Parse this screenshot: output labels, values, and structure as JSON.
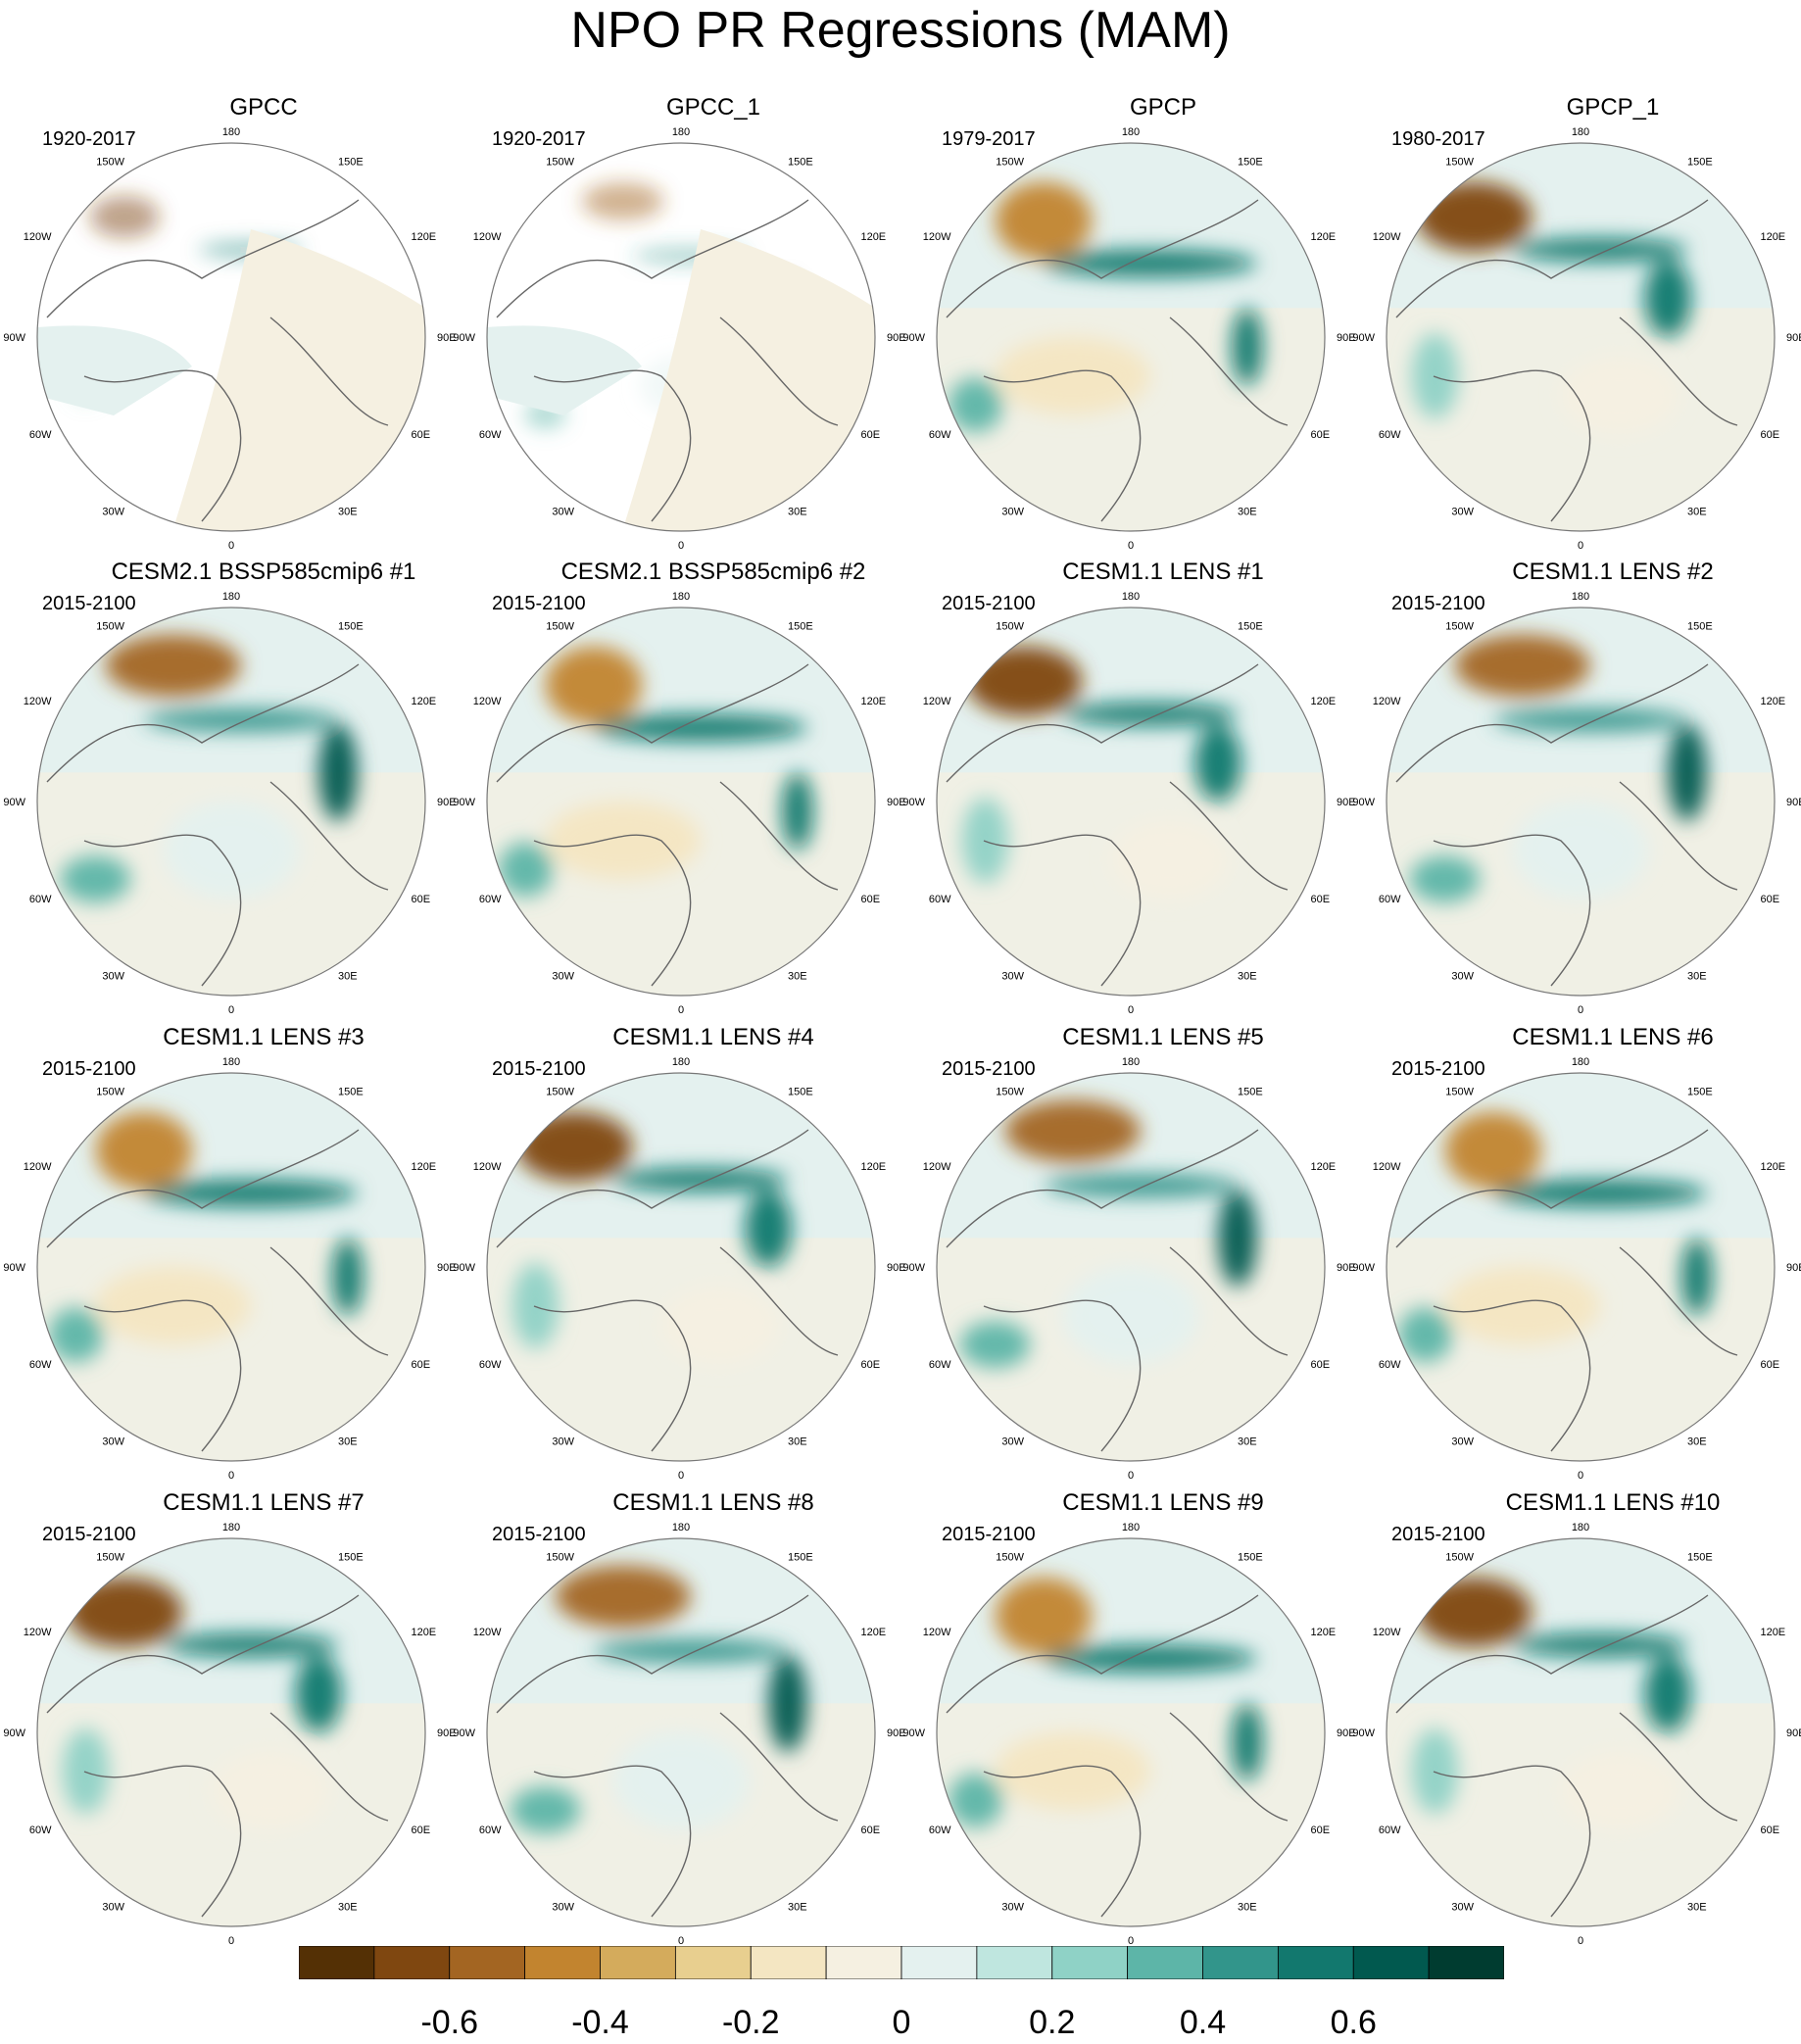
{
  "title": "NPO PR Regressions (MAM)",
  "map_labels": {
    "top": "180",
    "upper_left": "150W",
    "upper_right": "150E",
    "mid_upper_left": "120W",
    "mid_upper_right": "120E",
    "left": "90W",
    "right": "90E",
    "mid_lower_left": "60W",
    "mid_lower_right": "60E",
    "lower_left": "30W",
    "lower_right": "30E",
    "bottom": "0"
  },
  "panels": [
    {
      "title": "GPCC",
      "period": "1920-2017",
      "coverage": "land"
    },
    {
      "title": "GPCC_1",
      "period": "1920-2017",
      "coverage": "land"
    },
    {
      "title": "GPCP",
      "period": "1979-2017",
      "coverage": "global"
    },
    {
      "title": "GPCP_1",
      "period": "1980-2017",
      "coverage": "global"
    },
    {
      "title": "CESM2.1 BSSP585cmip6 #1",
      "period": "2015-2100",
      "coverage": "global"
    },
    {
      "title": "CESM2.1 BSSP585cmip6 #2",
      "period": "2015-2100",
      "coverage": "global"
    },
    {
      "title": "CESM1.1 LENS #1",
      "period": "2015-2100",
      "coverage": "global"
    },
    {
      "title": "CESM1.1 LENS #2",
      "period": "2015-2100",
      "coverage": "global"
    },
    {
      "title": "CESM1.1 LENS #3",
      "period": "2015-2100",
      "coverage": "global"
    },
    {
      "title": "CESM1.1 LENS #4",
      "period": "2015-2100",
      "coverage": "global"
    },
    {
      "title": "CESM1.1 LENS #5",
      "period": "2015-2100",
      "coverage": "global"
    },
    {
      "title": "CESM1.1 LENS #6",
      "period": "2015-2100",
      "coverage": "global"
    },
    {
      "title": "CESM1.1 LENS #7",
      "period": "2015-2100",
      "coverage": "global"
    },
    {
      "title": "CESM1.1 LENS #8",
      "period": "2015-2100",
      "coverage": "global"
    },
    {
      "title": "CESM1.1 LENS #9",
      "period": "2015-2100",
      "coverage": "global"
    },
    {
      "title": "CESM1.1 LENS #10",
      "period": "2015-2100",
      "coverage": "global"
    }
  ],
  "colorbar": {
    "colors": [
      "#543005",
      "#7f4710",
      "#a36522",
      "#c2842f",
      "#d4ab5c",
      "#e8cf8f",
      "#f4e6c2",
      "#f5f0e1",
      "#e4f1ef",
      "#bfe6df",
      "#8fd2c6",
      "#5db5a8",
      "#32958b",
      "#12786e",
      "#01594f",
      "#003c30"
    ],
    "labels": [
      "-0.6",
      "-0.4",
      "-0.2",
      "0",
      "0.2",
      "0.4",
      "0.6"
    ],
    "label_values": [
      -0.6,
      -0.4,
      -0.2,
      0,
      0.2,
      0.4,
      0.6
    ],
    "min": -0.8,
    "max": 0.8
  }
}
